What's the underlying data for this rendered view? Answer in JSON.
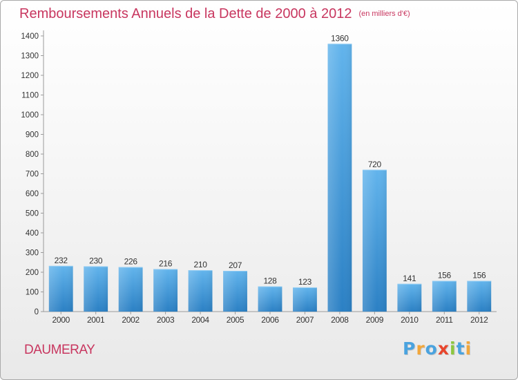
{
  "title": "Remboursements Annuels de la Dette de 2000 à 2012",
  "subtitle": "(en milliers d'€)",
  "town": "DAUMERAY",
  "brand": {
    "letters": [
      "P",
      "r",
      "o",
      "x",
      "i",
      "t",
      "i"
    ],
    "colors": [
      "#4aa3df",
      "#f2a73b",
      "#4aa3df",
      "#e8452c",
      "#8cc63f",
      "#4aa3df",
      "#f2a73b"
    ]
  },
  "colors": {
    "bar_light": "#62b4ec",
    "bar_dark": "#2b80c4",
    "text": "#c8365f"
  },
  "chart_data": {
    "type": "bar",
    "categories": [
      "2000",
      "2001",
      "2002",
      "2003",
      "2004",
      "2005",
      "2006",
      "2007",
      "2008",
      "2009",
      "2010",
      "2011",
      "2012"
    ],
    "values": [
      232,
      230,
      226,
      216,
      210,
      207,
      128,
      123,
      1360,
      720,
      141,
      156,
      156
    ],
    "ylim": [
      0,
      1400
    ],
    "yticks": [
      0,
      100,
      200,
      300,
      400,
      500,
      600,
      700,
      800,
      900,
      1000,
      1100,
      1200,
      1300,
      1400
    ],
    "grid": false,
    "legend": "none"
  }
}
